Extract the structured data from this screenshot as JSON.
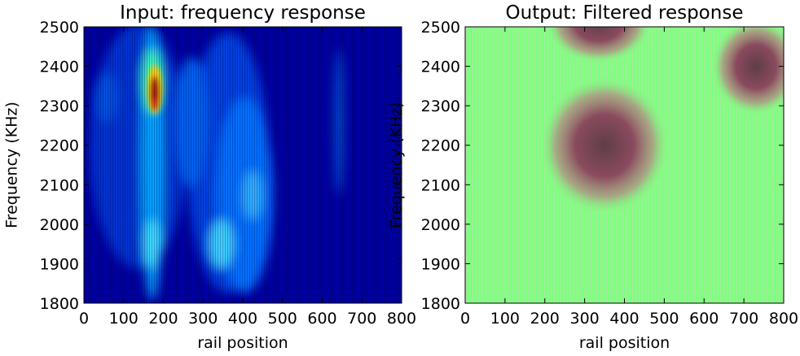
{
  "chart_data": [
    {
      "type": "heatmap",
      "title": "Input: frequency response",
      "x_label": "rail position",
      "y_label": "Frequency (KHz)",
      "xlim": [
        0,
        800
      ],
      "ylim": [
        1800,
        2500
      ],
      "xticks": [
        0,
        100,
        200,
        300,
        400,
        500,
        600,
        700,
        800
      ],
      "yticks": [
        1800,
        1900,
        2000,
        2100,
        2200,
        2300,
        2400,
        2500
      ]
    },
    {
      "type": "heatmap",
      "title": "Output: Filtered response",
      "x_label": "rail position",
      "y_label": "Frequency (KHz)",
      "xlim": [
        0,
        800
      ],
      "ylim": [
        1800,
        2500
      ],
      "xticks": [
        0,
        100,
        200,
        300,
        400,
        500,
        600,
        700,
        800
      ],
      "yticks": [
        1800,
        1900,
        2000,
        2100,
        2200,
        2300,
        2400,
        2500
      ]
    }
  ]
}
